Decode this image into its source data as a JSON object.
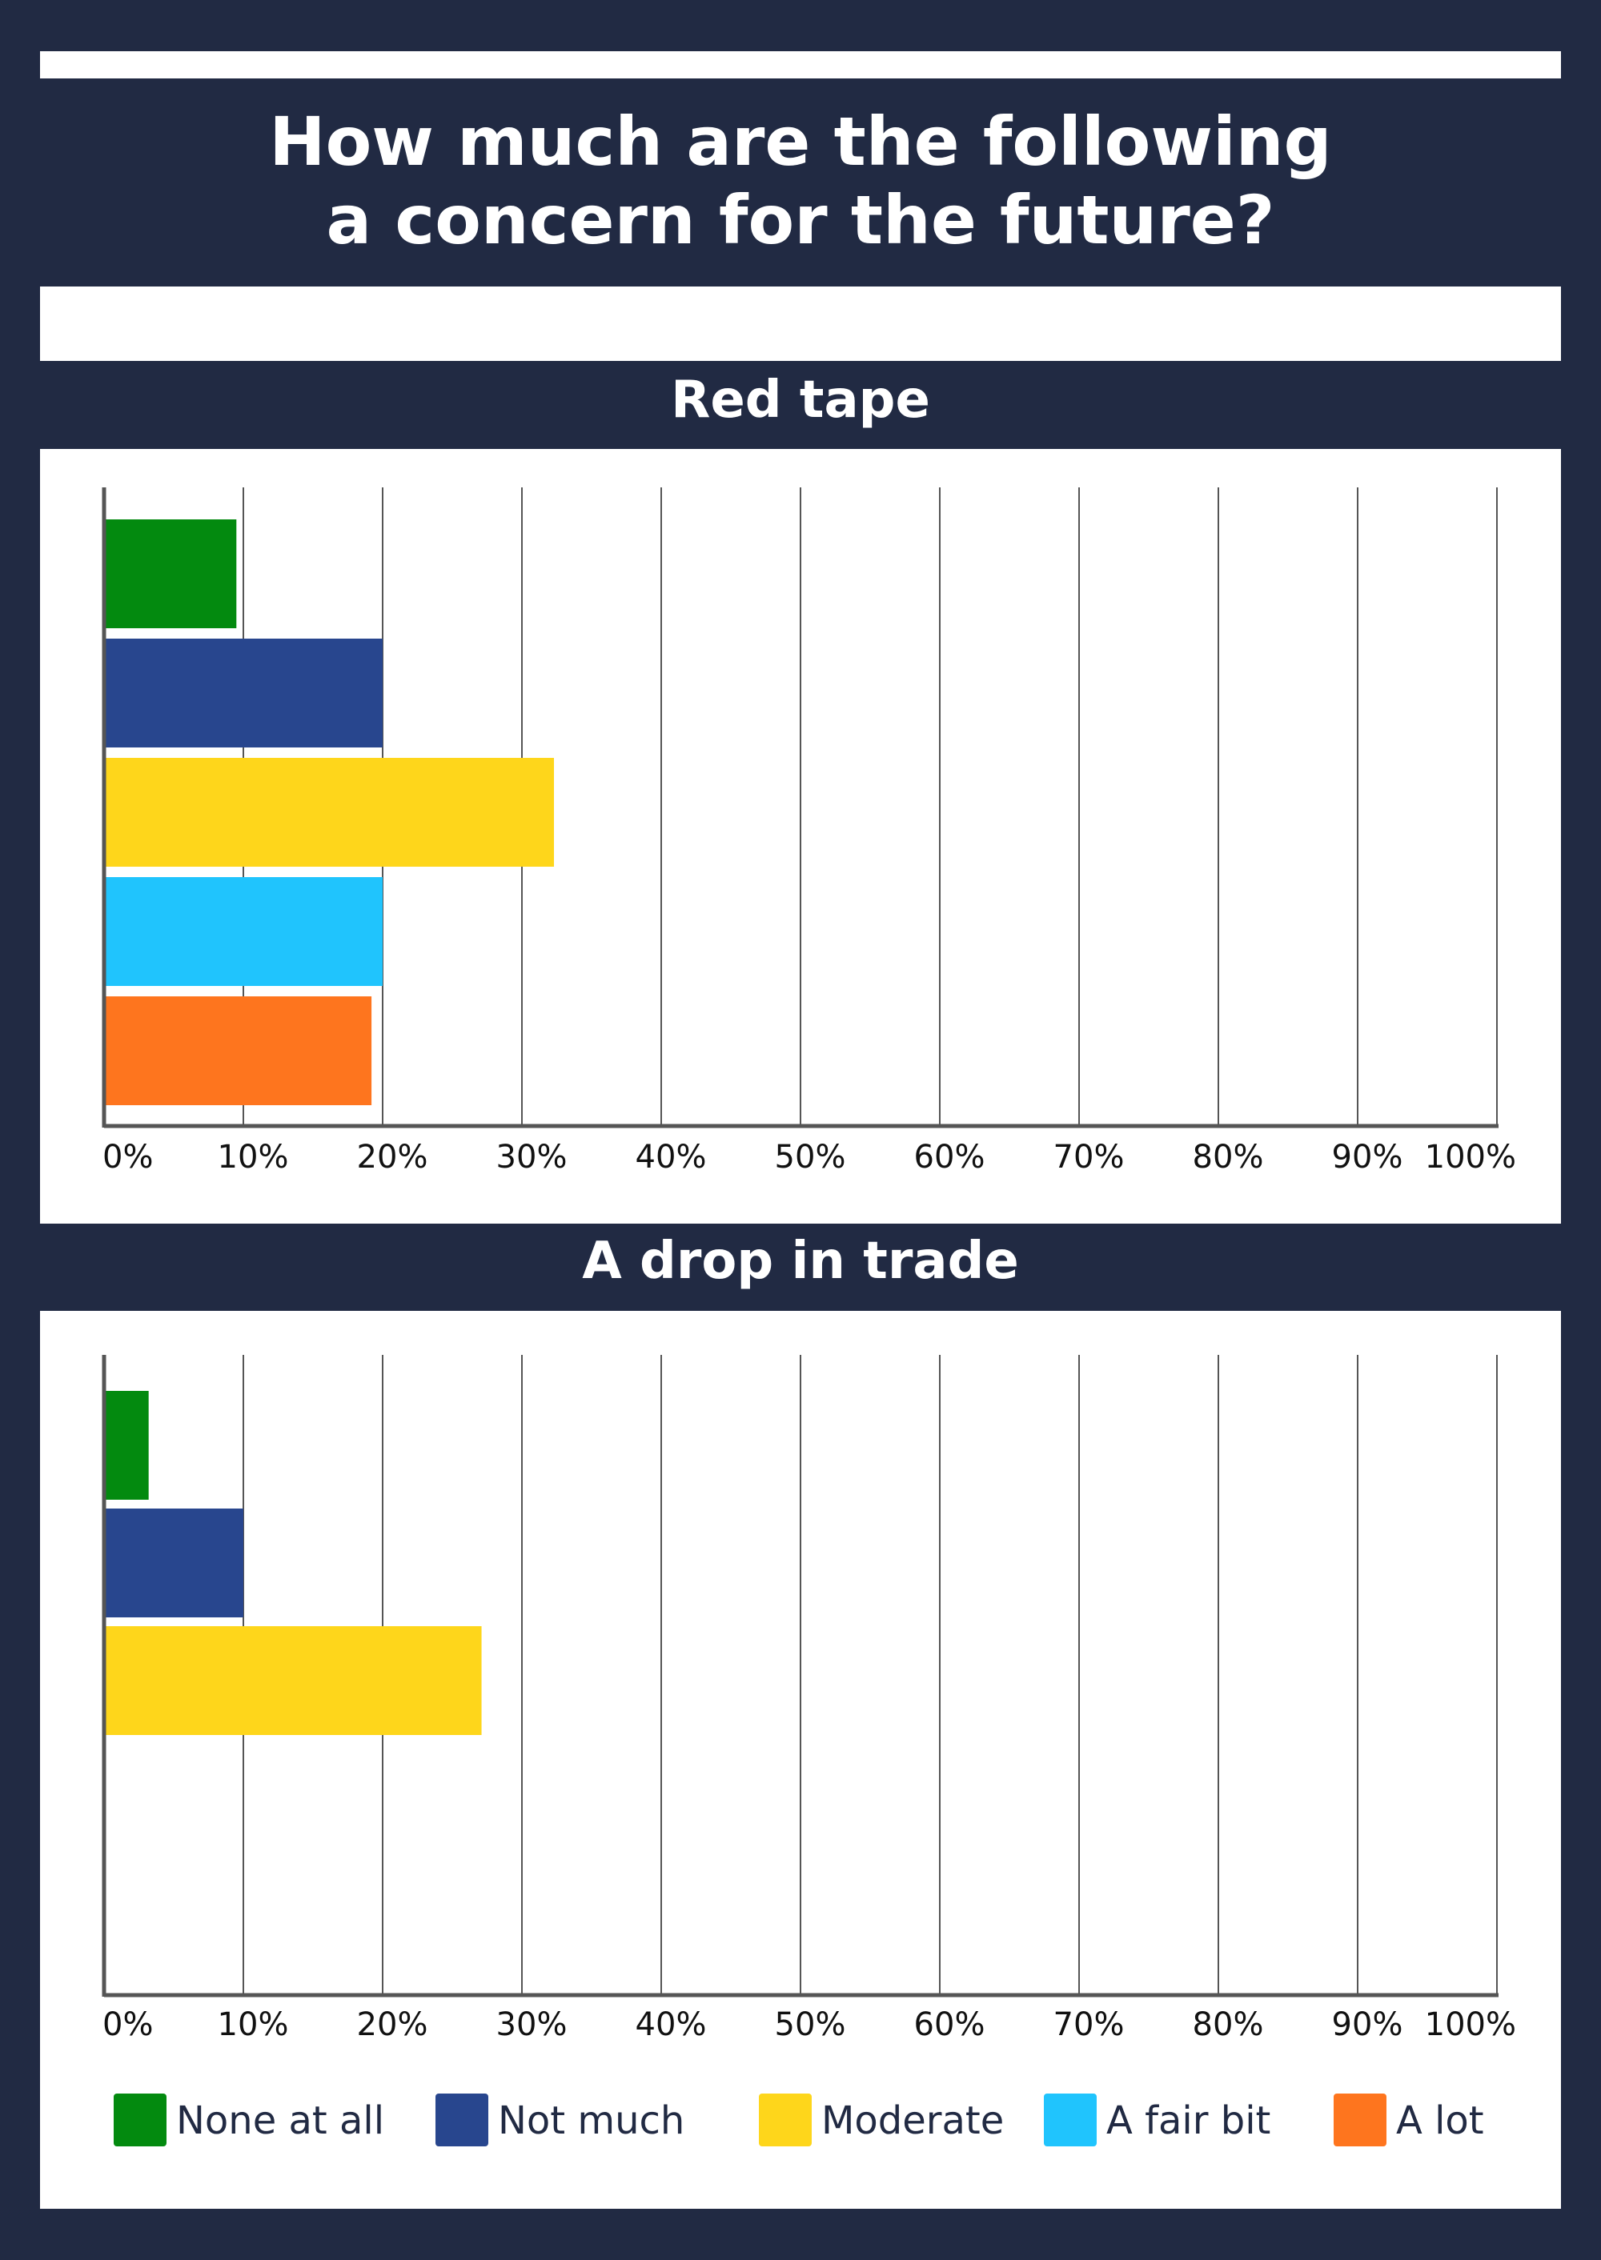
{
  "title_lines": [
    "How much are the following",
    "a concern for the future?"
  ],
  "colors": {
    "background": "#212a43",
    "panel": "#ffffff",
    "grid": "#555555",
    "axis": "#555555",
    "tick_text": "#111111"
  },
  "chart_data": [
    {
      "type": "bar",
      "orientation": "horizontal",
      "title": "Red tape",
      "categories": [
        "None at all",
        "Not much",
        "Moderate",
        "A fair bit",
        "A lot"
      ],
      "values": [
        9.5,
        20,
        32.3,
        20,
        19.2
      ],
      "colors": [
        "#038a0f",
        "#28468e",
        "#fed61b",
        "#20c4fd",
        "#fe751e"
      ],
      "xlim": [
        0,
        100
      ],
      "xticks": [
        "0%",
        "10%",
        "20%",
        "30%",
        "40%",
        "50%",
        "60%",
        "70%",
        "80%",
        "90%",
        "100%"
      ],
      "grid": true
    },
    {
      "type": "bar",
      "orientation": "horizontal",
      "title": "A drop in trade",
      "categories": [
        "None at all",
        "Not much",
        "Moderate",
        "A fair bit",
        "A lot"
      ],
      "values": [
        3.2,
        10,
        27.1,
        null,
        null
      ],
      "colors": [
        "#038a0f",
        "#28468e",
        "#fed61b",
        "#20c4fd",
        "#fe751e"
      ],
      "xlim": [
        0,
        100
      ],
      "xticks": [
        "0%",
        "10%",
        "20%",
        "30%",
        "40%",
        "50%",
        "60%",
        "70%",
        "80%",
        "90%",
        "100%"
      ],
      "grid": true
    }
  ],
  "legend": [
    {
      "label": "None at all",
      "color": "#038a0f"
    },
    {
      "label": "Not much",
      "color": "#28468e"
    },
    {
      "label": "Moderate",
      "color": "#fed61b"
    },
    {
      "label": "A fair bit",
      "color": "#20c4fd"
    },
    {
      "label": "A lot",
      "color": "#fe751e"
    }
  ]
}
